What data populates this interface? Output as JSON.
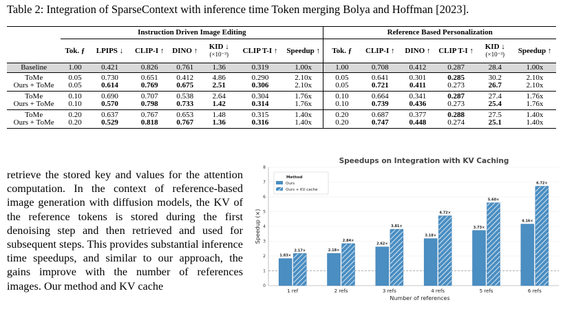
{
  "caption": "Table 2: Integration of SparseContext with inference time Token merging Bolya and Hoffman [2023].",
  "table": {
    "group_left": "Instruction Driven Image Editing",
    "group_right": "Reference Based Personalization",
    "headers_left": [
      "Tok. ƒ",
      "LPIPS ↓",
      "CLIP-I ↑",
      "DINO ↑",
      "KID ↓",
      "CLIP T-I ↑",
      "Speedup ↑"
    ],
    "headers_right": [
      "Tok. ƒ",
      "CLIP-I ↑",
      "DINO ↑",
      "CLIP T-I ↑",
      "KID ↓",
      "Speedup ↑"
    ],
    "kid_unit": "(×10⁻³)",
    "rows": [
      {
        "label": "Baseline",
        "left": [
          "1.00",
          "0.421",
          "0.826",
          "0.761",
          "1.36",
          "0.319",
          "1.00x"
        ],
        "right": [
          "1.00",
          "0.708",
          "0.412",
          "0.287",
          "28.4",
          "1.00x"
        ]
      },
      {
        "label": "ToMe",
        "left": [
          "0.05",
          "0.730",
          "0.651",
          "0.412",
          "4.86",
          "0.290",
          "2.10x"
        ],
        "right": [
          "0.05",
          "0.641",
          "0.301",
          "0.285",
          "30.2",
          "2.10x"
        ]
      },
      {
        "label": "Ours + ToMe",
        "left": [
          "0.05",
          "0.614",
          "0.769",
          "0.675",
          "2.51",
          "0.306",
          "2.10x"
        ],
        "right": [
          "0.05",
          "0.721",
          "0.411",
          "0.273",
          "26.7",
          "2.10x"
        ]
      },
      {
        "label": "ToMe",
        "left": [
          "0.10",
          "0.690",
          "0.707",
          "0.538",
          "2.64",
          "0.304",
          "1.76x"
        ],
        "right": [
          "0.10",
          "0.664",
          "0.341",
          "0.287",
          "27.4",
          "1.76x"
        ]
      },
      {
        "label": "Ours + ToMe",
        "left": [
          "0.10",
          "0.570",
          "0.798",
          "0.733",
          "1.42",
          "0.314",
          "1.76x"
        ],
        "right": [
          "0.10",
          "0.739",
          "0.436",
          "0.273",
          "25.4",
          "1.76x"
        ]
      },
      {
        "label": "ToMe",
        "left": [
          "0.20",
          "0.637",
          "0.767",
          "0.653",
          "1.48",
          "0.315",
          "1.40x"
        ],
        "right": [
          "0.20",
          "0.687",
          "0.377",
          "0.288",
          "27.5",
          "1.40x"
        ]
      },
      {
        "label": "Ours + ToMe",
        "left": [
          "0.20",
          "0.529",
          "0.818",
          "0.767",
          "1.36",
          "0.316",
          "1.40x"
        ],
        "right": [
          "0.20",
          "0.747",
          "0.448",
          "0.274",
          "25.1",
          "1.40x"
        ]
      }
    ]
  },
  "body_text": "retrieve the stored key and values for the attention computation. In the context of reference-based image generation with diffusion models, the KV of the reference tokens is stored during the first denoising step and then retrieved and used for subsequent steps. This provides substantial inference time speedups, and similar to our approach, the gains improve with the number of references images. Our method and KV cache",
  "chart_data": {
    "type": "bar",
    "title": "Speedups on Integration with KV Caching",
    "xlabel": "Number of references",
    "ylabel": "Speedup (×)",
    "categories": [
      "1 ref",
      "2 refs",
      "3 refs",
      "4 refs",
      "5 refs",
      "6 refs"
    ],
    "ylim": [
      0,
      8
    ],
    "yticks": [
      "0",
      "1",
      "2",
      "3",
      "4",
      "5",
      "6",
      "7",
      "8"
    ],
    "reference_line": 1,
    "legend_title": "Method",
    "legend_position": "top-left",
    "grid": true,
    "series": [
      {
        "name": "Ours",
        "values": [
          1.83,
          2.18,
          2.62,
          3.18,
          3.73,
          4.16
        ],
        "labels": [
          "1.83×",
          "2.18×",
          "2.62×",
          "3.18×",
          "3.73×",
          "4.16×"
        ],
        "color": "#4a8ec2"
      },
      {
        "name": "Ours + KV cache",
        "values": [
          2.17,
          2.84,
          3.81,
          4.72,
          5.6,
          6.72
        ],
        "labels": [
          "2.17×",
          "2.84×",
          "3.81×",
          "4.72×",
          "5.60×",
          "6.72×"
        ],
        "color": "#4a8ec2",
        "hatch": true
      }
    ]
  }
}
